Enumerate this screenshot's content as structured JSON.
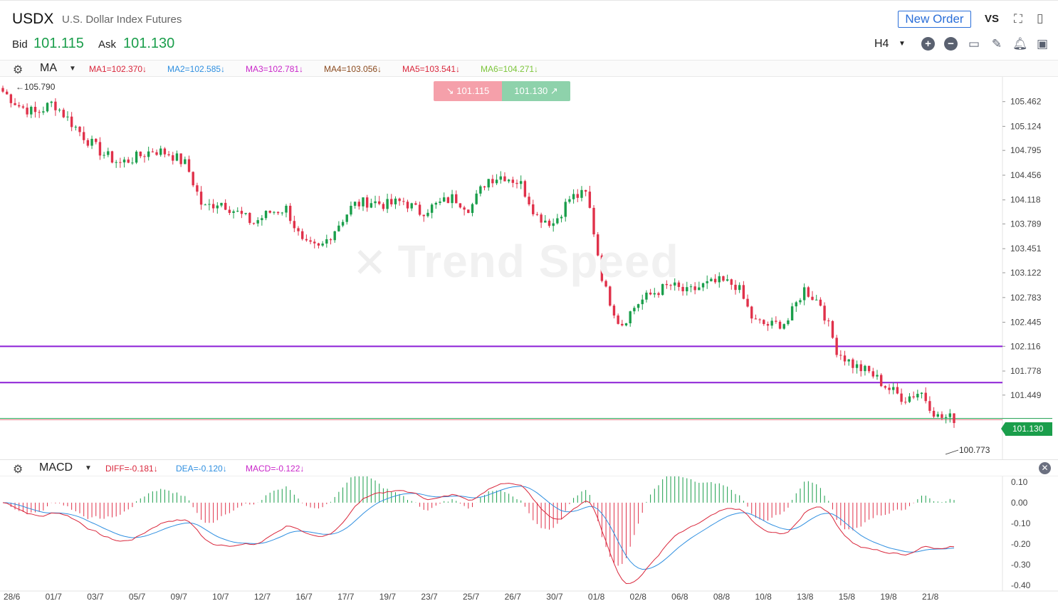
{
  "header": {
    "symbol": "USDX",
    "description": "U.S. Dollar Index Futures",
    "bid_label": "Bid",
    "bid_value": "101.115",
    "ask_label": "Ask",
    "ask_value": "101.130",
    "new_order_label": "New Order",
    "vs_label": "VS",
    "timeframe": "H4"
  },
  "ma_bar": {
    "indicator": "MA",
    "items": [
      {
        "label": "MA1=102.370↓",
        "color": "#d9263b"
      },
      {
        "label": "MA2=102.585↓",
        "color": "#2f8fe0"
      },
      {
        "label": "MA3=102.781↓",
        "color": "#c926c9"
      },
      {
        "label": "MA4=103.056↓",
        "color": "#8a4a1e"
      },
      {
        "label": "MA5=103.541↓",
        "color": "#d9263b"
      },
      {
        "label": "MA6=104.271↓",
        "color": "#7cc53a"
      }
    ]
  },
  "trade_panel": {
    "sell": "101.115",
    "buy": "101.130",
    "sell_arrow": "↘",
    "buy_arrow": "↗"
  },
  "watermark": {
    "symbol": "✕",
    "text": "Trend Speed"
  },
  "price_axis": [
    "105.462",
    "105.124",
    "104.795",
    "104.456",
    "104.118",
    "103.789",
    "103.451",
    "103.122",
    "102.783",
    "102.445",
    "102.116",
    "101.778",
    "101.449"
  ],
  "current_price": "101.130",
  "high_label": "105.790",
  "low_label": "100.773",
  "macd_bar": {
    "indicator": "MACD",
    "items": [
      {
        "label": "DIFF=-0.181↓",
        "color": "#d9263b"
      },
      {
        "label": "DEA=-0.120↓",
        "color": "#2f8fe0"
      },
      {
        "label": "MACD=-0.122↓",
        "color": "#c926c9"
      }
    ]
  },
  "macd_axis": [
    "0.10",
    "0.00",
    "-0.10",
    "-0.20",
    "-0.30",
    "-0.40"
  ],
  "time_axis": [
    "28/6",
    "01/7",
    "03/7",
    "05/7",
    "09/7",
    "10/7",
    "12/7",
    "16/7",
    "17/7",
    "19/7",
    "23/7",
    "25/7",
    "26/7",
    "30/7",
    "01/8",
    "02/8",
    "06/8",
    "08/8",
    "10/8",
    "13/8",
    "15/8",
    "19/8",
    "21/8"
  ],
  "colors": {
    "up": "#1a9e4b",
    "down": "#e0314a",
    "support": "#8c1fd6",
    "dif": "#d9263b",
    "dea": "#2f8fe0"
  },
  "chart_data": {
    "type": "candlestick",
    "y_axis_range": [
      100.6,
      105.8
    ],
    "horizontal_lines": [
      102.116,
      101.62
    ],
    "close_anchors": [
      105.6,
      105.4,
      105.3,
      105.45,
      105.2,
      104.95,
      104.75,
      104.62,
      104.7,
      104.8,
      104.75,
      104.6,
      104.0,
      104.1,
      103.95,
      103.8,
      103.95,
      104.0,
      103.5,
      103.45,
      103.75,
      104.05,
      104.1,
      104.05,
      104.1,
      103.95,
      104.05,
      104.15,
      104.0,
      104.4,
      104.45,
      104.35,
      103.9,
      103.8,
      104.15,
      104.2,
      102.95,
      102.4,
      102.7,
      102.85,
      102.95,
      102.85,
      102.95,
      103.0,
      102.95,
      102.45,
      102.4,
      102.45,
      102.9,
      102.7,
      102.05,
      101.85,
      101.75,
      101.55,
      101.4,
      101.5,
      101.15,
      101.13
    ],
    "macd_range": [
      -0.42,
      0.12
    ]
  }
}
